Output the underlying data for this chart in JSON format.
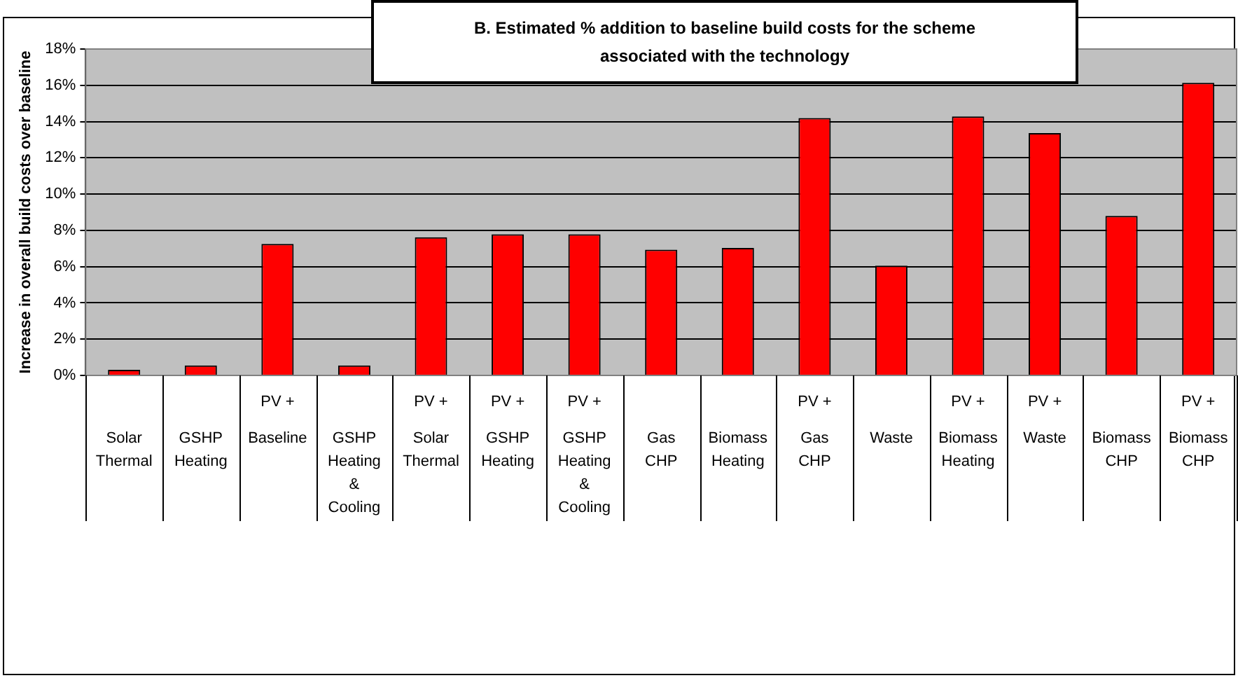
{
  "chart_data": {
    "type": "bar",
    "title": "B. Estimated % addition to baseline build costs for the scheme associated with the technology",
    "ylabel": "Increase in overall build costs over baseline",
    "categories": [
      "\nSolar\nThermal",
      "\nGSHP\nHeating",
      "PV +\nBaseline",
      "\nGSHP\nHeating\n&\nCooling",
      "PV +\nSolar\nThermal",
      "PV +\nGSHP\nHeating",
      "PV +\nGSHP\nHeating\n&\nCooling",
      "\nGas\nCHP",
      "\nBiomass\nHeating",
      "PV +\nGas\nCHP",
      "\nWaste",
      "PV +\nBiomass\nHeating",
      "PV +\nWaste",
      "\nBiomass\nCHP",
      "PV +\nBiomass\nCHP"
    ],
    "values": [
      0.31,
      0.55,
      7.25,
      0.55,
      7.62,
      7.78,
      7.78,
      6.93,
      7.03,
      14.2,
      6.05,
      14.28,
      13.36,
      8.8,
      16.14
    ],
    "color": "#ff0000",
    "ylim": [
      0,
      18
    ],
    "yticks": [
      {
        "value": 0,
        "label": "0%"
      },
      {
        "value": 2,
        "label": "2%"
      },
      {
        "value": 4,
        "label": "4%"
      },
      {
        "value": 6,
        "label": "6%"
      },
      {
        "value": 8,
        "label": "8%"
      },
      {
        "value": 10,
        "label": "10%"
      },
      {
        "value": 12,
        "label": "12%"
      },
      {
        "value": 14,
        "label": "14%"
      },
      {
        "value": 16,
        "label": "16%"
      },
      {
        "value": 18,
        "label": "18%"
      }
    ],
    "grid": "y",
    "legend": false
  }
}
